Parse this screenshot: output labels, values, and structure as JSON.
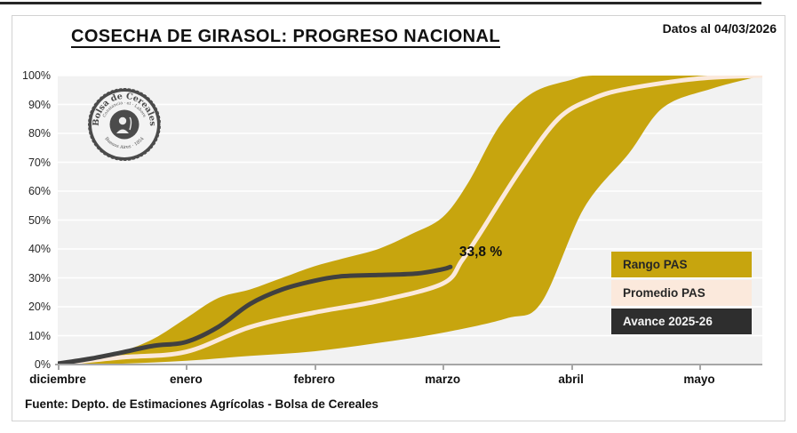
{
  "header": {
    "title": "COSECHA DE GIRASOL: PROGRESO NACIONAL",
    "date_note": "Datos al 04/03/2026"
  },
  "logo": {
    "arc_top": "Bolsa de Cereales",
    "motto": "Constancia · et · Labore",
    "arc_bottom": "Buenos Aires · 1854"
  },
  "chart_data": {
    "type": "area",
    "title": "COSECHA DE GIRASOL: PROGRESO NACIONAL",
    "x_axis": {
      "tick_labels": [
        "diciembre",
        "enero",
        "febrero",
        "marzo",
        "abril",
        "mayo"
      ],
      "unit": "month-index (0 = diciembre)"
    },
    "y_axis": {
      "tick_labels": [
        "0%",
        "10%",
        "20%",
        "30%",
        "40%",
        "50%",
        "60%",
        "70%",
        "80%",
        "90%",
        "100%"
      ],
      "min": 0,
      "max": 100,
      "grid": true
    },
    "series": [
      {
        "name": "Rango PAS",
        "type": "band",
        "color": "#c7a50e",
        "x_upper": [
          0,
          0.25,
          0.5,
          0.75,
          1,
          1.25,
          1.5,
          1.75,
          2,
          2.25,
          2.5,
          2.75,
          3,
          3.2,
          3.45,
          3.7,
          4,
          4.17,
          4.6,
          5,
          5.49
        ],
        "upper": [
          0.5,
          2,
          4.5,
          9,
          16,
          23,
          26,
          30,
          34,
          37,
          40,
          45,
          51,
          63,
          83,
          94,
          98.5,
          100,
          100,
          100,
          100
        ],
        "x_lower": [
          0,
          0.5,
          1,
          1.5,
          2,
          2.5,
          3,
          3.5,
          3.77,
          4.1,
          4.45,
          4.72,
          5.1,
          5.49
        ],
        "lower": [
          0,
          0.3,
          1.3,
          3,
          4.6,
          7.5,
          11,
          16,
          21.5,
          54,
          73,
          89,
          95.5,
          100
        ]
      },
      {
        "name": "Promedio PAS",
        "type": "line",
        "color": "#fbe9dc",
        "x": [
          0,
          0.5,
          1,
          1.5,
          2,
          2.5,
          3,
          3.15,
          3.3,
          3.6,
          3.9,
          4.17,
          4.45,
          5,
          5.49
        ],
        "values": [
          0.2,
          2.5,
          4.4,
          13,
          18,
          22,
          28,
          36,
          46,
          67,
          85,
          92,
          95.5,
          99,
          100
        ]
      },
      {
        "name": "Avance 2025-26",
        "type": "line",
        "color": "#404040",
        "x": [
          0,
          0.25,
          0.5,
          0.75,
          1,
          1.25,
          1.5,
          1.75,
          2,
          2.2,
          2.5,
          2.8,
          3,
          3.06
        ],
        "values": [
          0.3,
          2,
          4.2,
          6.5,
          7.8,
          13,
          21,
          26,
          29,
          30.5,
          31,
          31.5,
          33,
          33.8
        ]
      }
    ],
    "annotation": {
      "text": "33,8 %",
      "x": 3.06,
      "value": 33.8
    },
    "legend": {
      "position": "bottom-right",
      "entries": [
        {
          "label": "Rango PAS",
          "bg": "#c7a50e",
          "fg": "#262626"
        },
        {
          "label": "Promedio PAS",
          "bg": "#fbe9dc",
          "fg": "#262626"
        },
        {
          "label": "Avance 2025-26",
          "bg": "#2e2e2e",
          "fg": "#f5f5f5"
        }
      ]
    },
    "colors": {
      "band": "#c7a50e",
      "average_line": "#fbe9dc",
      "current_line": "#404040",
      "plot_background": "#f2f2f2"
    }
  },
  "footer": {
    "source": "Fuente: Depto. de Estimaciones Agrícolas - Bolsa de Cereales"
  }
}
